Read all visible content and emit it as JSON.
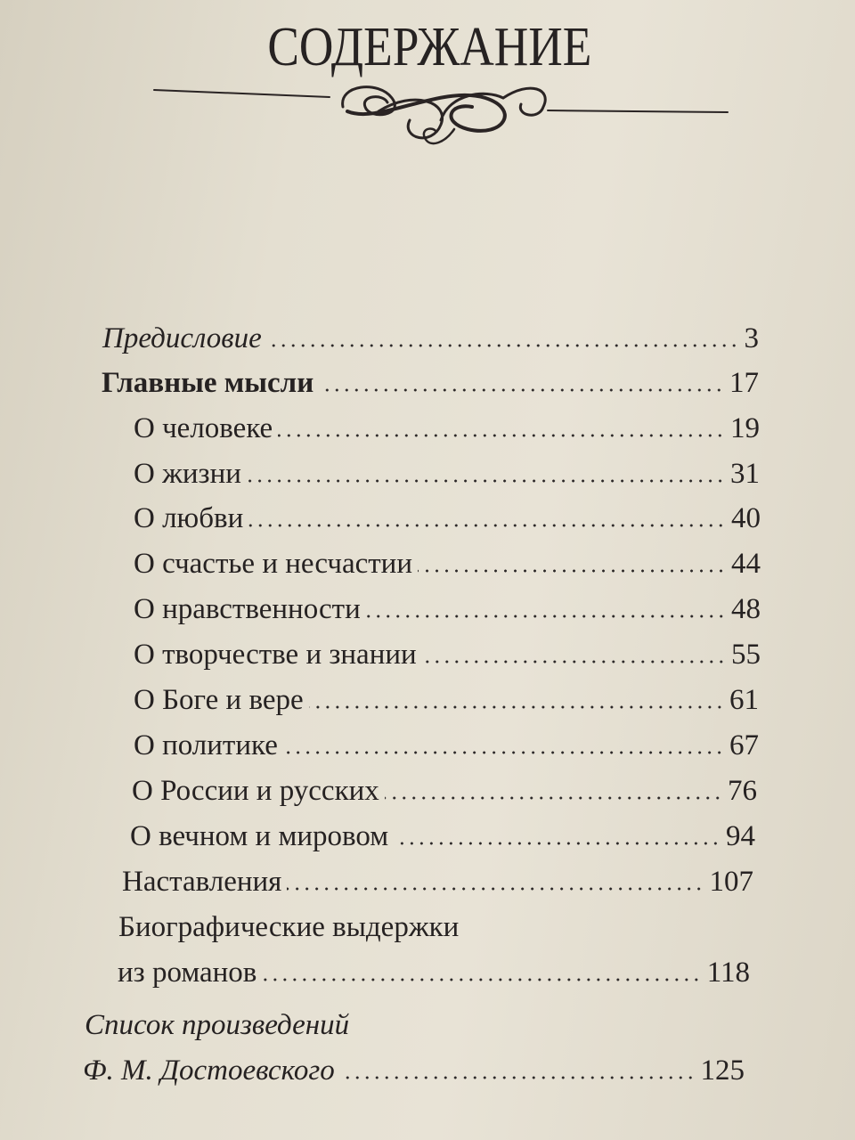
{
  "page": {
    "title": "СОДЕРЖАНИЕ",
    "ornament_icon": "flourish-divider",
    "entries": [
      {
        "label": "Предисловие",
        "page": "3",
        "style": "italic"
      },
      {
        "label": "Главные мысли",
        "page": "17",
        "style": "bold"
      },
      {
        "label": "О человеке",
        "page": "19"
      },
      {
        "label": "О жизни",
        "page": "31"
      },
      {
        "label": "О любви",
        "page": "40"
      },
      {
        "label": "О счастье и несчастии",
        "page": "44"
      },
      {
        "label": "О нравственности",
        "page": "48"
      },
      {
        "label": "О творчестве и знании",
        "page": "55"
      },
      {
        "label": "О Боге и вере",
        "page": "61"
      },
      {
        "label": "О политике",
        "page": "67"
      },
      {
        "label": "О России и русских",
        "page": "76"
      },
      {
        "label": "О вечном и мировом",
        "page": "94"
      },
      {
        "label": "Наставления",
        "page": "107"
      },
      {
        "label_line1": "Биографические выдержки",
        "label": "из романов",
        "page": "118"
      },
      {
        "label_line1": "Список произведений",
        "label": "Ф. М. Достоевского",
        "page": "125",
        "style": "italic"
      }
    ]
  }
}
